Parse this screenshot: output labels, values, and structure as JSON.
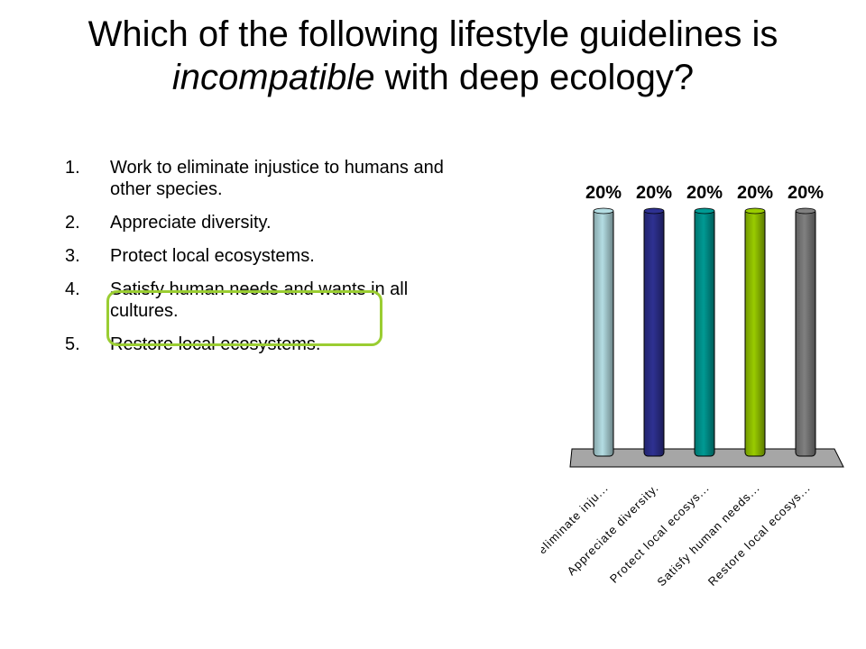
{
  "title": {
    "line1": "Which of the following lifestyle guidelines is",
    "line2_emph": "incompatible",
    "line2_rest": " with deep ecology?"
  },
  "options": [
    {
      "num": "1.",
      "text": "Work to eliminate injustice to humans and other species."
    },
    {
      "num": "2.",
      "text": "Appreciate diversity."
    },
    {
      "num": "3.",
      "text": "Protect local ecosystems."
    },
    {
      "num": "4.",
      "text": "Satisfy human needs and wants in all cultures."
    },
    {
      "num": "5.",
      "text": "Restore local ecosystems."
    }
  ],
  "highlighted_option": 4,
  "highlight_color": "#9acd32",
  "chart_data": {
    "type": "bar",
    "categories": [
      "Work to eliminate inju...",
      "Appreciate diversity.",
      "Protect local ecosys...",
      "Satisfy human needs...",
      "Restore local ecosys..."
    ],
    "values": [
      20,
      20,
      20,
      20,
      20
    ],
    "value_labels": [
      "20%",
      "20%",
      "20%",
      "20%",
      "20%"
    ],
    "colors": [
      "#b4dde3",
      "#2e3192",
      "#009a94",
      "#99cc00",
      "#808080"
    ],
    "ylim": [
      0,
      20
    ],
    "grid": false
  }
}
